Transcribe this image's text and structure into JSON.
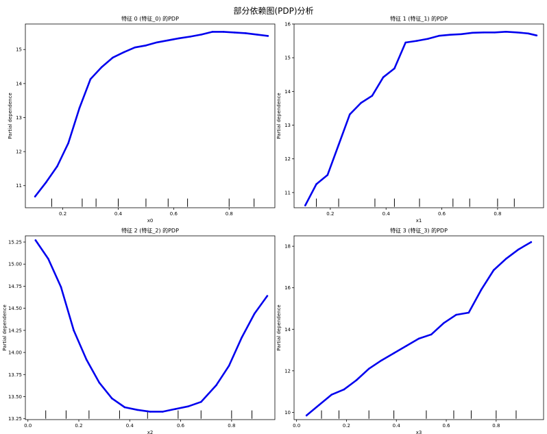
{
  "chart_data": {
    "suptitle": "部分依赖图(PDP)分析",
    "panels": [
      {
        "type": "line",
        "title": "特征 0 (特征_0) 的PDP",
        "xlabel": "x0",
        "ylabel": "Partial dependence",
        "xlim": [
          0.065,
          0.965
        ],
        "ylim": [
          10.35,
          15.75
        ],
        "xticks": [
          0.2,
          0.4,
          0.6,
          0.8
        ],
        "xtick_labels": [
          "0.2",
          "0.4",
          "0.6",
          "0.8"
        ],
        "yticks": [
          11,
          12,
          13,
          14,
          15
        ],
        "ytick_labels": [
          "11",
          "12",
          "13",
          "14",
          "15"
        ],
        "color": "#0000ee",
        "x": [
          0.1,
          0.14,
          0.18,
          0.22,
          0.26,
          0.3,
          0.34,
          0.38,
          0.42,
          0.46,
          0.5,
          0.54,
          0.58,
          0.62,
          0.66,
          0.7,
          0.74,
          0.78,
          0.82,
          0.86,
          0.9,
          0.94
        ],
        "y": [
          10.68,
          11.1,
          11.57,
          12.25,
          13.28,
          14.13,
          14.48,
          14.76,
          14.92,
          15.06,
          15.12,
          15.21,
          15.27,
          15.33,
          15.38,
          15.44,
          15.52,
          15.52,
          15.5,
          15.48,
          15.44,
          15.4
        ],
        "rug": [
          0.16,
          0.27,
          0.32,
          0.4,
          0.5,
          0.58,
          0.65,
          0.8,
          0.89
        ]
      },
      {
        "type": "line",
        "title": "特征 1 (特征_1) 的PDP",
        "xlabel": "x1",
        "ylabel": "Partial dependence",
        "xlim": [
          0.07,
          0.965
        ],
        "ylim": [
          10.55,
          16.0
        ],
        "xticks": [
          0.2,
          0.4,
          0.6,
          0.8
        ],
        "xtick_labels": [
          "0.2",
          "0.4",
          "0.6",
          "0.8"
        ],
        "yticks": [
          11,
          12,
          13,
          14,
          15,
          16
        ],
        "ytick_labels": [
          "11",
          "12",
          "13",
          "14",
          "15",
          "16"
        ],
        "color": "#0000ee",
        "x": [
          0.11,
          0.15,
          0.19,
          0.23,
          0.27,
          0.31,
          0.35,
          0.39,
          0.43,
          0.47,
          0.51,
          0.55,
          0.59,
          0.63,
          0.67,
          0.71,
          0.75,
          0.79,
          0.83,
          0.87,
          0.91,
          0.94
        ],
        "y": [
          10.62,
          11.25,
          11.52,
          12.42,
          13.32,
          13.66,
          13.87,
          14.42,
          14.68,
          15.45,
          15.5,
          15.56,
          15.65,
          15.68,
          15.7,
          15.74,
          15.75,
          15.75,
          15.77,
          15.75,
          15.72,
          15.66
        ],
        "rug": [
          0.15,
          0.23,
          0.36,
          0.43,
          0.52,
          0.64,
          0.7,
          0.8,
          0.86
        ]
      },
      {
        "type": "line",
        "title": "特征 2 (特征_2) 的PDP",
        "xlabel": "x2",
        "ylabel": "Partial dependence",
        "xlim": [
          -0.01,
          0.97
        ],
        "ylim": [
          13.24,
          15.32
        ],
        "xticks": [
          0.0,
          0.2,
          0.4,
          0.6,
          0.8
        ],
        "xtick_labels": [
          "0.0",
          "0.2",
          "0.4",
          "0.6",
          "0.8"
        ],
        "yticks": [
          13.25,
          13.5,
          13.75,
          14.0,
          14.25,
          14.5,
          14.75,
          15.0,
          15.25
        ],
        "ytick_labels": [
          "13.25",
          "13.50",
          "13.75",
          "14.00",
          "14.25",
          "14.50",
          "14.75",
          "15.00",
          "15.25"
        ],
        "color": "#0000ee",
        "x": [
          0.03,
          0.08,
          0.13,
          0.18,
          0.23,
          0.28,
          0.33,
          0.38,
          0.43,
          0.48,
          0.53,
          0.58,
          0.63,
          0.68,
          0.74,
          0.79,
          0.84,
          0.89,
          0.94
        ],
        "y": [
          15.27,
          15.06,
          14.74,
          14.25,
          13.92,
          13.66,
          13.48,
          13.38,
          13.35,
          13.33,
          13.33,
          13.36,
          13.39,
          13.44,
          13.63,
          13.85,
          14.17,
          14.44,
          14.64
        ],
        "rug": [
          0.07,
          0.15,
          0.24,
          0.36,
          0.47,
          0.59,
          0.68,
          0.8,
          0.88
        ]
      },
      {
        "type": "line",
        "title": "特征 3 (特征_3) 的PDP",
        "xlabel": "x3",
        "ylabel": "Partial dependence",
        "xlim": [
          -0.01,
          0.99
        ],
        "ylim": [
          9.65,
          18.5
        ],
        "xticks": [
          0.0,
          0.2,
          0.4,
          0.6,
          0.8
        ],
        "xtick_labels": [
          "0.0",
          "0.2",
          "0.4",
          "0.6",
          "0.8"
        ],
        "yticks": [
          10,
          12,
          14,
          16,
          18
        ],
        "ytick_labels": [
          "10",
          "12",
          "14",
          "16",
          "18"
        ],
        "color": "#0000ee",
        "x": [
          0.04,
          0.09,
          0.14,
          0.19,
          0.24,
          0.29,
          0.34,
          0.39,
          0.44,
          0.49,
          0.54,
          0.59,
          0.64,
          0.69,
          0.74,
          0.79,
          0.84,
          0.89,
          0.94
        ],
        "y": [
          9.85,
          10.35,
          10.85,
          11.1,
          11.55,
          12.1,
          12.5,
          12.85,
          13.2,
          13.55,
          13.75,
          14.3,
          14.7,
          14.8,
          15.9,
          16.85,
          17.4,
          17.85,
          18.2
        ],
        "rug": [
          0.1,
          0.17,
          0.29,
          0.39,
          0.52,
          0.63,
          0.7,
          0.8,
          0.88
        ]
      }
    ]
  }
}
